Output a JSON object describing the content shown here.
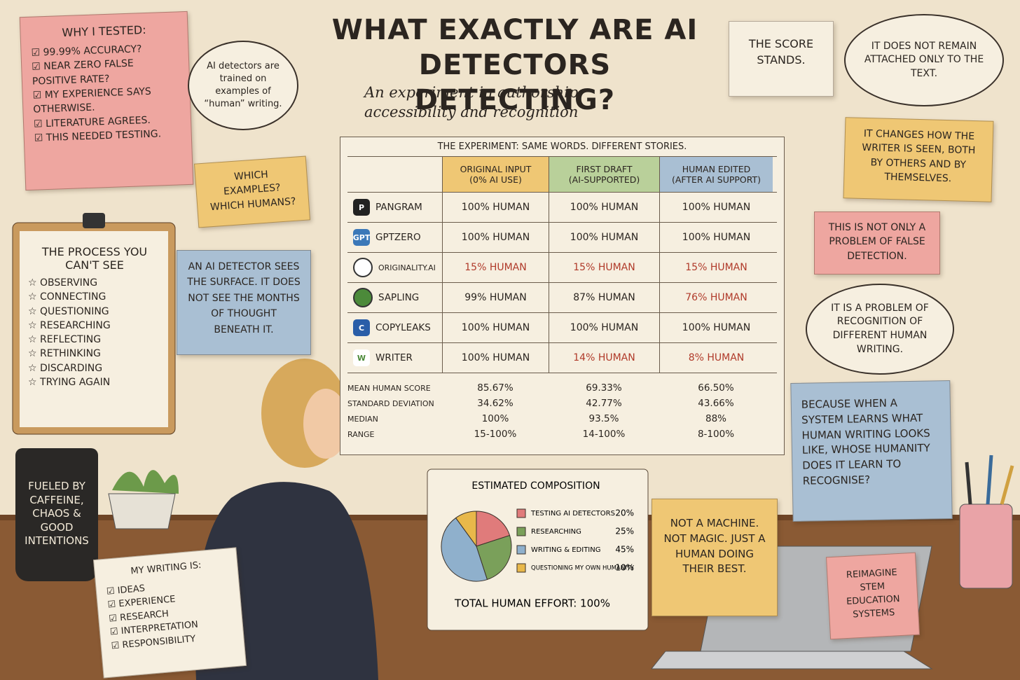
{
  "title": "WHAT EXACTLY ARE AI DETECTORS DETECTING?",
  "subtitle": "An experiment in authorship, accessibility and recognition",
  "why_tested": {
    "title": "WHY I TESTED:",
    "items": [
      "99.99% ACCURACY?",
      "NEAR ZERO FALSE POSITIVE RATE?",
      "MY EXPERIENCE SAYS OTHERWISE.",
      "LITERATURE AGREES.",
      "THIS NEEDED TESTING."
    ]
  },
  "cloud_training": "AI detectors are trained on examples of “human” writing.",
  "which_note": "WHICH EXAMPLES? WHICH HUMANS?",
  "process": {
    "title": "THE PROCESS YOU CAN'T SEE",
    "items": [
      "OBSERVING",
      "CONNECTING",
      "QUESTIONING",
      "RESEARCHING",
      "REFLECTING",
      "RETHINKING",
      "DISCARDING",
      "TRYING AGAIN"
    ]
  },
  "surface_note": "AN AI DETECTOR SEES THE SURFACE. IT DOES NOT SEE THE MONTHS OF THOUGHT BENEATH IT.",
  "table": {
    "caption": "THE EXPERIMENT: SAME WORDS. DIFFERENT STORIES.",
    "columns": [
      {
        "name": "ORIGINAL INPUT",
        "sub": "(0% AI USE)",
        "color": "#efc774"
      },
      {
        "name": "FIRST DRAFT",
        "sub": "(AI-SUPPORTED)",
        "color": "#b9d09a"
      },
      {
        "name": "HUMAN EDITED",
        "sub": "(AFTER AI SUPPORT)",
        "color": "#a9bfd3"
      }
    ],
    "rows": [
      {
        "detector": "PANGRAM",
        "icon": "P",
        "cells": [
          {
            "text": "100% HUMAN",
            "color": "#2b2520"
          },
          {
            "text": "100% HUMAN",
            "color": "#2b2520"
          },
          {
            "text": "100% HUMAN",
            "color": "#2b2520"
          }
        ]
      },
      {
        "detector": "GPTZERO",
        "icon": "GPT",
        "cells": [
          {
            "text": "100% HUMAN",
            "color": "#2b2520"
          },
          {
            "text": "100% HUMAN",
            "color": "#2b2520"
          },
          {
            "text": "100% HUMAN",
            "color": "#2b2520"
          }
        ]
      },
      {
        "detector": "ORIGINALITY.AI",
        "cells": [
          {
            "text": "15% HUMAN",
            "color": "#b03a2a"
          },
          {
            "text": "15% HUMAN",
            "color": "#b03a2a"
          },
          {
            "text": "15% HUMAN",
            "color": "#b03a2a"
          }
        ]
      },
      {
        "detector": "SAPLING",
        "cells": [
          {
            "text": "99% HUMAN",
            "color": "#2b2520"
          },
          {
            "text": "87% HUMAN",
            "color": "#2b2520"
          },
          {
            "text": "76% HUMAN",
            "color": "#b03a2a"
          }
        ]
      },
      {
        "detector": "COPYLEAKS",
        "icon": "C",
        "cells": [
          {
            "text": "100% HUMAN",
            "color": "#2b2520"
          },
          {
            "text": "100% HUMAN",
            "color": "#2b2520"
          },
          {
            "text": "100% HUMAN",
            "color": "#2b2520"
          }
        ]
      },
      {
        "detector": "WRITER",
        "icon": "W",
        "cells": [
          {
            "text": "100% HUMAN",
            "color": "#2b2520"
          },
          {
            "text": "14% HUMAN",
            "color": "#b03a2a"
          },
          {
            "text": "8% HUMAN",
            "color": "#b03a2a"
          }
        ]
      }
    ],
    "stats": [
      {
        "label": "MEAN HUMAN SCORE",
        "values": [
          "85.67%",
          "69.33%",
          "66.50%"
        ]
      },
      {
        "label": "STANDARD DEVIATION",
        "values": [
          "34.62%",
          "42.77%",
          "43.66%"
        ]
      },
      {
        "label": "MEDIAN",
        "values": [
          "100%",
          "93.5%",
          "88%"
        ]
      },
      {
        "label": "RANGE",
        "values": [
          "15-100%",
          "14-100%",
          "8-100%"
        ]
      }
    ]
  },
  "score_stands": "THE SCORE STANDS.",
  "right_notes": [
    "IT DOES NOT REMAIN ATTACHED ONLY TO THE TEXT.",
    "IT CHANGES HOW THE WRITER IS SEEN, BOTH BY OTHERS AND BY THEMSELVES.",
    "THIS IS NOT ONLY A PROBLEM OF FALSE DETECTION.",
    "IT IS A PROBLEM OF RECOGNITION OF DIFFERENT HUMAN WRITING.",
    "BECAUSE WHEN A SYSTEM LEARNS WHAT HUMAN WRITING LOOKS LIKE, WHOSE HUMANITY DOES IT LEARN TO RECOGNISE?"
  ],
  "mug": "FUELED BY CAFFEINE, CHAOS & GOOD INTENTIONS",
  "writing": {
    "title": "MY WRITING IS:",
    "items": [
      "IDEAS",
      "EXPERIENCE",
      "RESEARCH",
      "INTERPRETATION",
      "RESPONSIBILITY"
    ]
  },
  "chart_data": {
    "type": "pie",
    "title": "ESTIMATED COMPOSITION",
    "categories": [
      "TESTING AI DETECTORS",
      "RESEARCHING",
      "WRITING & EDITING",
      "QUESTIONING MY OWN HUMANITY"
    ],
    "values": [
      20,
      25,
      45,
      10
    ],
    "value_labels": [
      "20%",
      "25%",
      "45%",
      "10%"
    ],
    "colors": [
      "#e07b7b",
      "#7aa05a",
      "#8fb0cc",
      "#e8b84a"
    ],
    "annotation": "TOTAL HUMAN EFFORT: 100%"
  },
  "machine_note": "NOT A MACHINE. NOT MAGIC. JUST A HUMAN DOING THEIR BEST.",
  "laptop_note": "REIMAGINE STEM EDUCATION SYSTEMS"
}
